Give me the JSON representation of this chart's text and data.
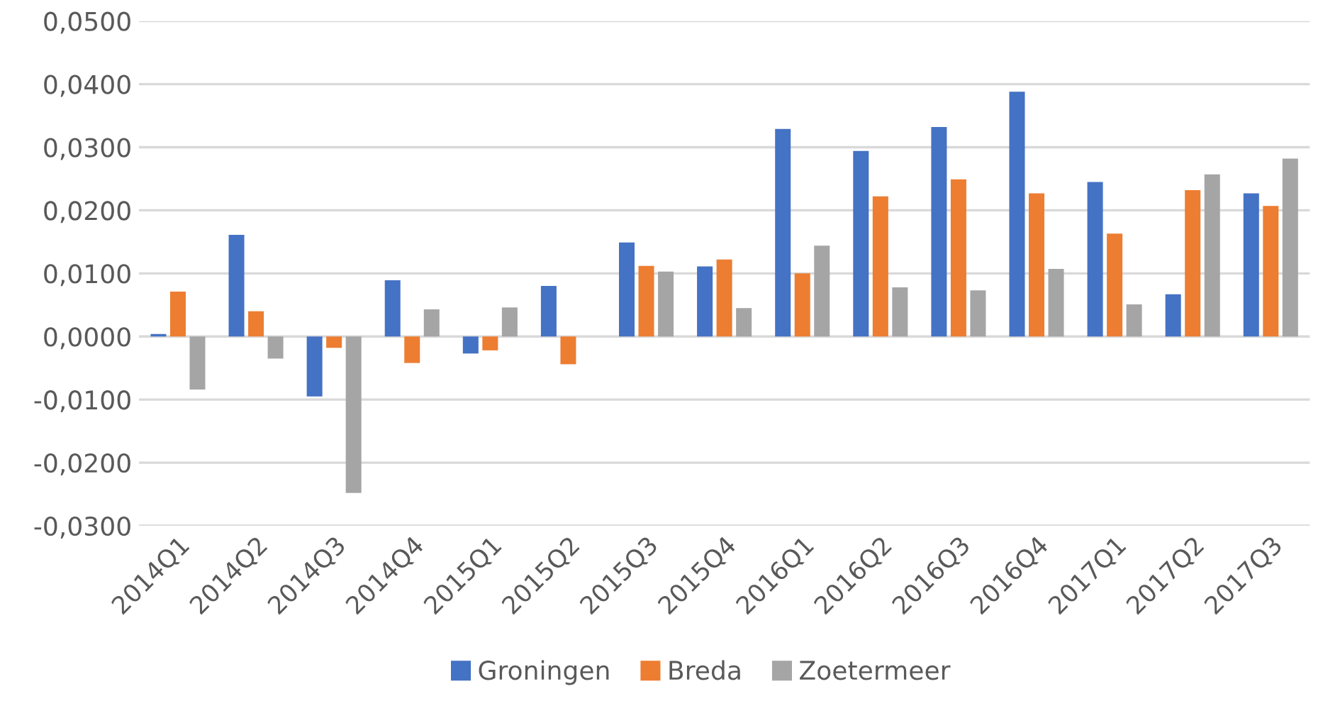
{
  "chart_data": {
    "type": "bar",
    "categories": [
      "2014Q1",
      "2014Q2",
      "2014Q3",
      "2014Q4",
      "2015Q1",
      "2015Q2",
      "2015Q3",
      "2015Q4",
      "2016Q1",
      "2016Q2",
      "2016Q3",
      "2016Q4",
      "2017Q1",
      "2017Q2",
      "2017Q3"
    ],
    "series": [
      {
        "name": "Groningen",
        "color": "#4472c4",
        "values": [
          0.0004,
          0.0161,
          -0.0095,
          0.0089,
          -0.0027,
          0.008,
          0.0149,
          0.0111,
          0.0329,
          0.0294,
          0.0332,
          0.0388,
          0.0245,
          0.0067,
          0.0227
        ]
      },
      {
        "name": "Breda",
        "color": "#ed7d31",
        "values": [
          0.0071,
          0.004,
          -0.0018,
          -0.0042,
          -0.0022,
          -0.0044,
          0.0112,
          0.0122,
          0.01,
          0.0222,
          0.0249,
          0.0227,
          0.0163,
          0.0232,
          0.0207
        ]
      },
      {
        "name": "Zoetermeer",
        "color": "#a5a5a5",
        "values": [
          -0.0084,
          -0.0035,
          -0.0248,
          0.0043,
          0.0046,
          0,
          0.0103,
          0.0045,
          0.0144,
          0.0078,
          0.0073,
          0.0107,
          0.0051,
          0.0257,
          0.0282
        ]
      }
    ],
    "ylim": [
      -0.03,
      0.05
    ],
    "yticks": [
      {
        "value": -0.03,
        "label": "-0,0300"
      },
      {
        "value": -0.02,
        "label": "-0,0200"
      },
      {
        "value": -0.01,
        "label": "-0,0100"
      },
      {
        "value": 0,
        "label": "0,0000"
      },
      {
        "value": 0.01,
        "label": "0,0100"
      },
      {
        "value": 0.02,
        "label": "0,0200"
      },
      {
        "value": 0.03,
        "label": "0,0300"
      },
      {
        "value": 0.04,
        "label": "0,0400"
      },
      {
        "value": 0.05,
        "label": "0,0500"
      }
    ],
    "grid": "y",
    "legend": "bottom"
  }
}
